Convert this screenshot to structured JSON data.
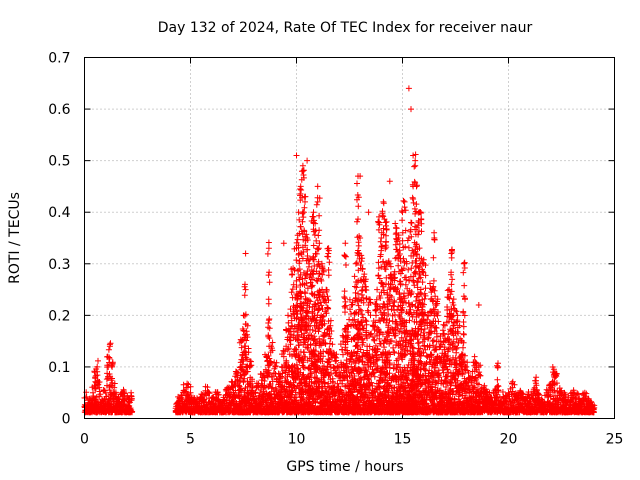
{
  "chart_data": {
    "type": "scatter",
    "title": "Day 132 of 2024, Rate Of TEC Index for receiver naur",
    "xlabel": "GPS time / hours",
    "ylabel": "ROTI / TECUs",
    "xlim": [
      0,
      25
    ],
    "ylim": [
      0,
      0.7
    ],
    "x_ticks": [
      "0",
      "5",
      "10",
      "15",
      "20",
      "25"
    ],
    "y_ticks": [
      "0",
      "0.1",
      "0.2",
      "0.3",
      "0.4",
      "0.5",
      "0.6",
      "0.7"
    ],
    "grid": true,
    "marker": "plus",
    "color": "#ff0000",
    "series": [
      {
        "name": "ROTI",
        "x": [
          0.0,
          0.2,
          0.4,
          0.5,
          0.6,
          0.7,
          0.8,
          1.0,
          1.1,
          1.2,
          1.3,
          1.4,
          1.5,
          1.6,
          1.8,
          2.0,
          2.1,
          2.2,
          4.3,
          4.5,
          4.8,
          5.0,
          5.2,
          5.5,
          5.8,
          6.0,
          6.2,
          6.5,
          6.8,
          7.0,
          7.2,
          7.4,
          7.5,
          7.6,
          7.7,
          7.8,
          8.0,
          8.2,
          8.4,
          8.6,
          8.8,
          9.0,
          9.2,
          9.4,
          9.6,
          9.8,
          10.0,
          10.1,
          10.2,
          10.3,
          10.4,
          10.5,
          10.6,
          10.8,
          11.0,
          11.2,
          11.4,
          11.6,
          11.8,
          12.0,
          12.2,
          12.4,
          12.6,
          12.8,
          13.0,
          13.2,
          13.4,
          13.6,
          13.8,
          14.0,
          14.2,
          14.4,
          14.6,
          14.8,
          15.0,
          15.1,
          15.2,
          15.3,
          15.4,
          15.5,
          15.6,
          15.8,
          16.0,
          16.2,
          16.4,
          16.6,
          16.8,
          17.0,
          17.2,
          17.4,
          17.6,
          17.8,
          18.0,
          18.2,
          18.4,
          18.6,
          18.8,
          19.0,
          19.2,
          19.4,
          19.6,
          19.8,
          20.0,
          20.2,
          20.4,
          20.6,
          20.8,
          21.0,
          21.2,
          21.4,
          21.6,
          21.8,
          22.0,
          22.2,
          22.4,
          22.6,
          22.8,
          23.0,
          23.2,
          23.4,
          23.6,
          23.8,
          24.0,
          10.0,
          10.3,
          10.5,
          11.0,
          12.9,
          13.0,
          13.9,
          14.1,
          14.4,
          15.1,
          15.3,
          15.4,
          15.5,
          15.6,
          7.6,
          8.7,
          9.4,
          10.8,
          11.5,
          12.3,
          13.4,
          14.7,
          16.5,
          17.3,
          17.9,
          18.6,
          19.5,
          21.3,
          22.1
        ],
        "y": [
          0.04,
          0.03,
          0.05,
          0.08,
          0.1,
          0.06,
          0.03,
          0.05,
          0.12,
          0.14,
          0.1,
          0.06,
          0.04,
          0.03,
          0.05,
          0.04,
          0.03,
          0.05,
          0.02,
          0.04,
          0.06,
          0.05,
          0.03,
          0.04,
          0.05,
          0.03,
          0.04,
          0.03,
          0.05,
          0.06,
          0.08,
          0.15,
          0.2,
          0.25,
          0.18,
          0.1,
          0.05,
          0.06,
          0.08,
          0.12,
          0.14,
          0.1,
          0.08,
          0.12,
          0.2,
          0.28,
          0.33,
          0.4,
          0.45,
          0.48,
          0.42,
          0.35,
          0.3,
          0.38,
          0.42,
          0.3,
          0.25,
          0.18,
          0.12,
          0.1,
          0.15,
          0.18,
          0.22,
          0.3,
          0.35,
          0.28,
          0.22,
          0.18,
          0.25,
          0.35,
          0.38,
          0.3,
          0.28,
          0.35,
          0.4,
          0.42,
          0.3,
          0.35,
          0.38,
          0.45,
          0.5,
          0.4,
          0.3,
          0.2,
          0.25,
          0.22,
          0.15,
          0.18,
          0.25,
          0.22,
          0.2,
          0.15,
          0.1,
          0.08,
          0.12,
          0.1,
          0.06,
          0.05,
          0.04,
          0.05,
          0.03,
          0.04,
          0.05,
          0.06,
          0.04,
          0.05,
          0.03,
          0.04,
          0.05,
          0.04,
          0.03,
          0.05,
          0.06,
          0.08,
          0.05,
          0.04,
          0.03,
          0.05,
          0.04,
          0.03,
          0.04,
          0.03,
          0.02,
          0.51,
          0.49,
          0.5,
          0.45,
          0.47,
          0.47,
          0.38,
          0.42,
          0.46,
          0.41,
          0.64,
          0.6,
          0.51,
          0.49,
          0.32,
          0.33,
          0.34,
          0.4,
          0.32,
          0.34,
          0.4,
          0.37,
          0.35,
          0.32,
          0.3,
          0.22,
          0.1,
          0.08,
          0.09
        ]
      }
    ]
  }
}
